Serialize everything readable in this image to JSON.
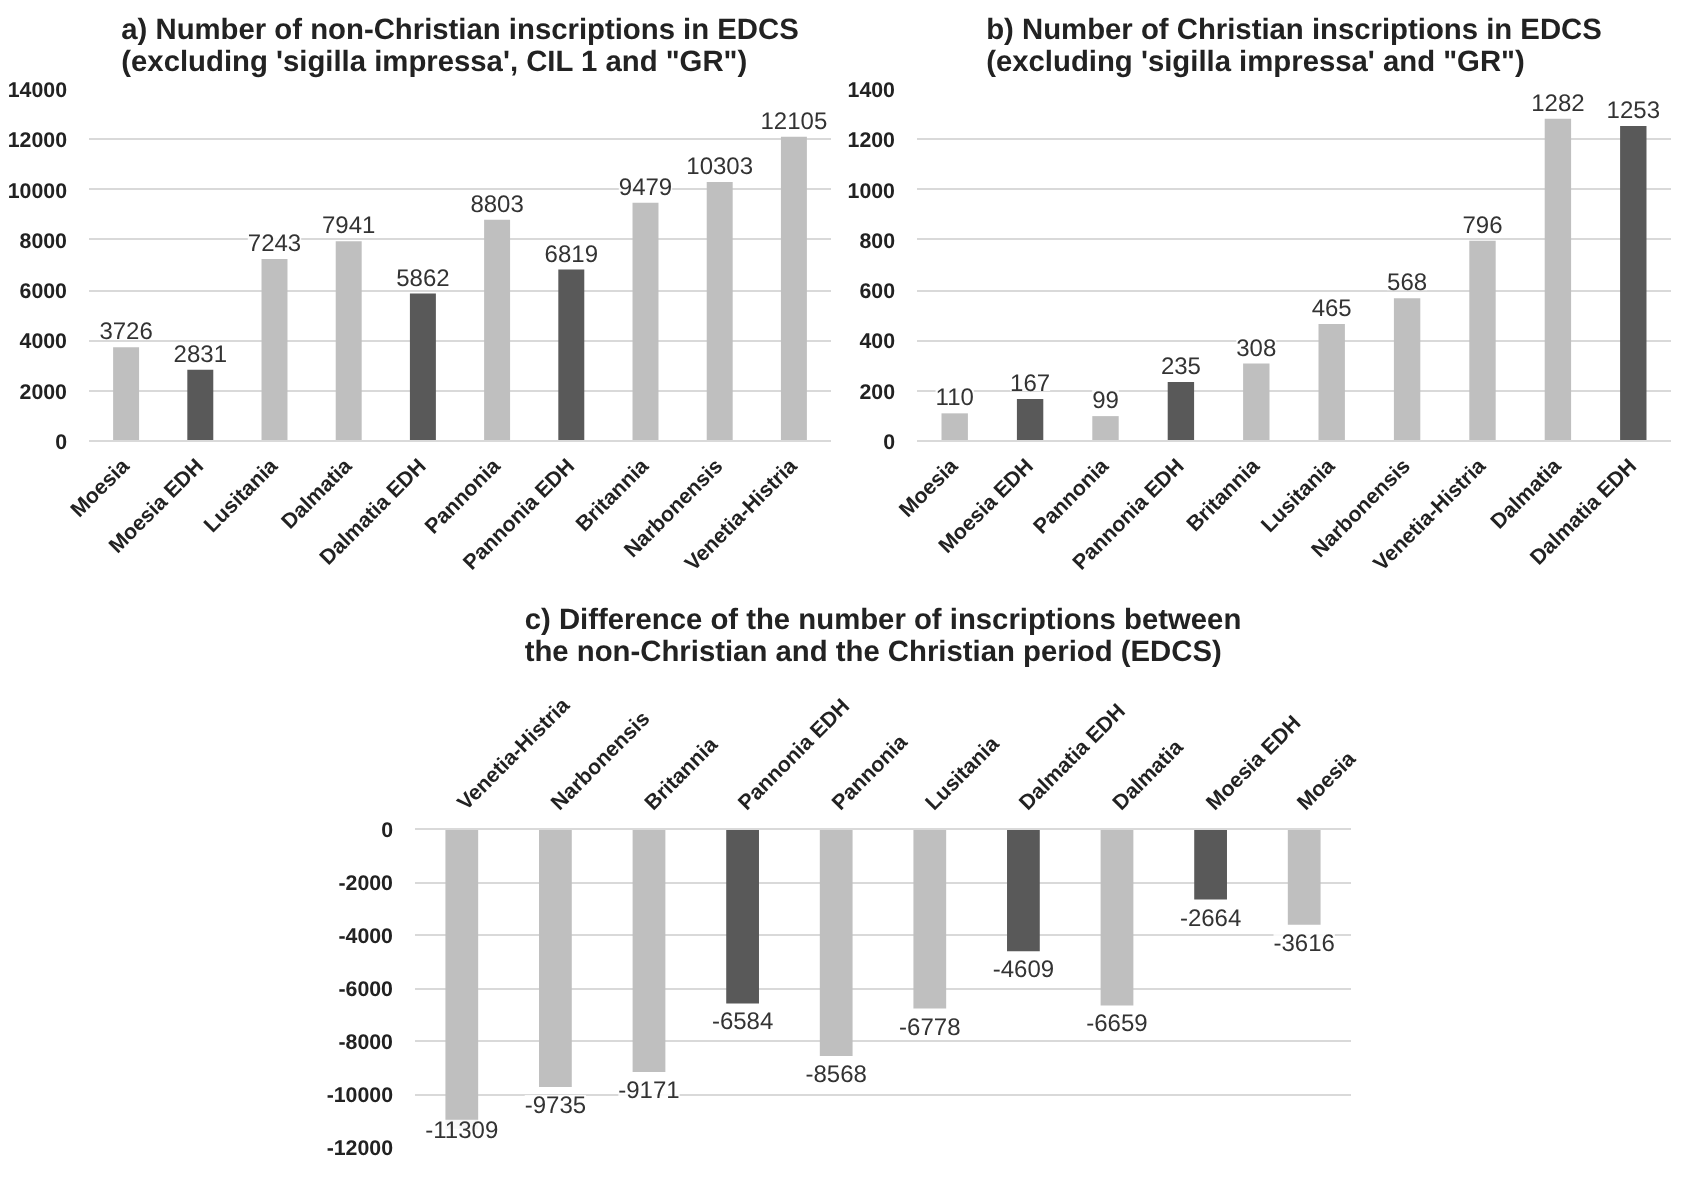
{
  "chart_data": [
    {
      "type": "bar",
      "title": "a) Number of non-Christian inscriptions in EDCS\n(excluding 'sigilla impressa', CIL 1 and \"GR\")",
      "categories": [
        "Moesia",
        "Moesia EDH",
        "Lusitania",
        "Dalmatia",
        "Dalmatia EDH",
        "Pannonia",
        "Pannonia EDH",
        "Britannia",
        "Narbonensis",
        "Venetia-Histria"
      ],
      "values": [
        3726,
        2831,
        7243,
        7941,
        5862,
        8803,
        6819,
        9479,
        10303,
        12105
      ],
      "colors": [
        "#bfbfbf",
        "#595959",
        "#bfbfbf",
        "#bfbfbf",
        "#595959",
        "#bfbfbf",
        "#595959",
        "#bfbfbf",
        "#bfbfbf",
        "#bfbfbf"
      ],
      "ylim": [
        0,
        14000
      ],
      "yticks": [
        0,
        2000,
        4000,
        6000,
        8000,
        10000,
        12000,
        14000
      ],
      "grid": "y",
      "data_labels": true
    },
    {
      "type": "bar",
      "title": "b) Number of Christian inscriptions in EDCS\n(excluding 'sigilla impressa' and \"GR\")",
      "categories": [
        "Moesia",
        "Moesia EDH",
        "Pannonia",
        "Pannonia EDH",
        "Britannia",
        "Lusitania",
        "Narbonensis",
        "Venetia-Histria",
        "Dalmatia",
        "Dalmatia EDH"
      ],
      "values": [
        110,
        167,
        99,
        235,
        308,
        465,
        568,
        796,
        1282,
        1253
      ],
      "colors": [
        "#bfbfbf",
        "#595959",
        "#bfbfbf",
        "#595959",
        "#bfbfbf",
        "#bfbfbf",
        "#bfbfbf",
        "#bfbfbf",
        "#bfbfbf",
        "#595959"
      ],
      "ylim": [
        0,
        1400
      ],
      "yticks": [
        0,
        200,
        400,
        600,
        800,
        1000,
        1200,
        1400
      ],
      "grid": "y",
      "data_labels": true
    },
    {
      "type": "bar",
      "title": "c) Difference of the number of inscriptions between\nthe non-Christian and the Christian period (EDCS)",
      "categories": [
        "Venetia-Histria",
        "Narbonensis",
        "Britannia",
        "Pannonia EDH",
        "Pannonia",
        "Lusitania",
        "Dalmatia EDH",
        "Dalmatia",
        "Moesia EDH",
        "Moesia"
      ],
      "values": [
        -11309,
        -9735,
        -9171,
        -6584,
        -8568,
        -6778,
        -4609,
        -6659,
        -2664,
        -3616
      ],
      "colors": [
        "#bfbfbf",
        "#bfbfbf",
        "#bfbfbf",
        "#595959",
        "#bfbfbf",
        "#bfbfbf",
        "#595959",
        "#bfbfbf",
        "#595959",
        "#bfbfbf"
      ],
      "ylim": [
        -12000,
        0
      ],
      "yticks": [
        0,
        -2000,
        -4000,
        -6000,
        -8000,
        -10000,
        -12000
      ],
      "grid": "y",
      "data_labels": true
    }
  ]
}
